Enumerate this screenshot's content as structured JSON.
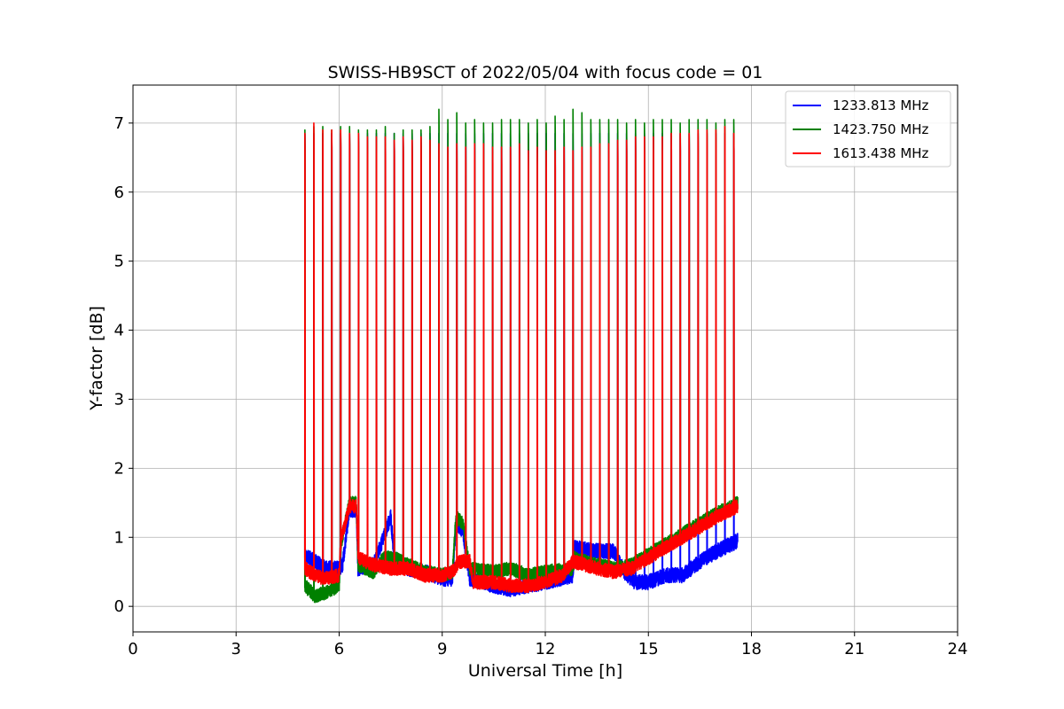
{
  "chart_data": {
    "type": "line",
    "title": "SWISS-HB9SCT of 2022/05/04 with focus code = 01",
    "xlabel": "Universal Time [h]",
    "ylabel": "Y-factor [dB]",
    "xlim": [
      0,
      24
    ],
    "ylim": [
      -0.37,
      7.55
    ],
    "xticks": [
      0,
      3,
      6,
      9,
      12,
      15,
      18,
      21,
      24
    ],
    "yticks": [
      0,
      1,
      2,
      3,
      4,
      5,
      6,
      7
    ],
    "grid": true,
    "legend_position": "top-right",
    "series": [
      {
        "name": "1233.813 MHz",
        "color": "#0000ff",
        "baseline": [
          [
            5.0,
            0.75
          ],
          [
            5.3,
            0.65
          ],
          [
            5.6,
            0.55
          ],
          [
            6.0,
            0.55
          ],
          [
            6.1,
            0.6
          ],
          [
            6.3,
            1.4
          ],
          [
            6.5,
            1.4
          ],
          [
            6.55,
            0.55
          ],
          [
            7.0,
            0.6
          ],
          [
            7.3,
            1.0
          ],
          [
            7.5,
            1.3
          ],
          [
            7.6,
            0.7
          ],
          [
            8.0,
            0.55
          ],
          [
            8.5,
            0.5
          ],
          [
            9.0,
            0.4
          ],
          [
            9.3,
            0.4
          ],
          [
            9.4,
            1.2
          ],
          [
            9.6,
            1.1
          ],
          [
            9.8,
            0.4
          ],
          [
            10.5,
            0.3
          ],
          [
            11.0,
            0.25
          ],
          [
            11.5,
            0.3
          ],
          [
            12.0,
            0.35
          ],
          [
            12.8,
            0.45
          ],
          [
            12.85,
            0.85
          ],
          [
            13.5,
            0.8
          ],
          [
            14.0,
            0.8
          ],
          [
            14.3,
            0.5
          ],
          [
            14.6,
            0.35
          ],
          [
            15.0,
            0.35
          ],
          [
            15.5,
            0.45
          ],
          [
            16.0,
            0.45
          ],
          [
            16.5,
            0.65
          ],
          [
            17.0,
            0.8
          ],
          [
            17.6,
            0.95
          ]
        ],
        "noise": 0.11,
        "spikes": [
          5.0,
          5.26,
          5.52,
          5.78,
          6.04,
          6.3,
          6.56,
          6.82,
          7.08,
          7.34,
          7.6,
          7.86,
          8.12,
          8.38,
          8.64,
          8.9,
          9.16,
          9.42,
          9.68,
          9.94,
          10.2,
          10.46,
          10.72,
          10.98,
          11.24,
          11.5,
          11.76,
          12.02,
          12.28,
          12.54,
          12.8,
          13.06,
          13.32,
          13.58,
          13.84,
          14.1,
          14.36,
          14.62,
          14.88,
          15.14,
          15.4,
          15.66,
          15.92,
          16.18,
          16.44,
          16.7,
          16.96,
          17.22,
          17.48
        ],
        "spike_peak": 6.85
      },
      {
        "name": "1423.750 MHz",
        "color": "#008000",
        "baseline": [
          [
            5.0,
            0.3
          ],
          [
            5.3,
            0.15
          ],
          [
            5.6,
            0.2
          ],
          [
            6.0,
            0.3
          ],
          [
            6.05,
            0.9
          ],
          [
            6.3,
            1.5
          ],
          [
            6.5,
            1.5
          ],
          [
            6.55,
            0.6
          ],
          [
            7.0,
            0.5
          ],
          [
            7.3,
            0.7
          ],
          [
            7.6,
            0.7
          ],
          [
            8.0,
            0.6
          ],
          [
            8.5,
            0.5
          ],
          [
            9.0,
            0.45
          ],
          [
            9.3,
            0.5
          ],
          [
            9.4,
            1.3
          ],
          [
            9.6,
            1.2
          ],
          [
            9.8,
            0.55
          ],
          [
            10.5,
            0.5
          ],
          [
            11.0,
            0.55
          ],
          [
            11.5,
            0.45
          ],
          [
            12.0,
            0.5
          ],
          [
            12.8,
            0.55
          ],
          [
            12.85,
            0.7
          ],
          [
            13.5,
            0.6
          ],
          [
            14.0,
            0.55
          ],
          [
            14.5,
            0.6
          ],
          [
            15.0,
            0.75
          ],
          [
            15.5,
            0.9
          ],
          [
            16.0,
            1.05
          ],
          [
            16.5,
            1.2
          ],
          [
            17.0,
            1.35
          ],
          [
            17.6,
            1.5
          ]
        ],
        "noise": 0.1,
        "spikes": [
          5.0,
          5.26,
          5.52,
          5.78,
          6.04,
          6.3,
          6.56,
          6.82,
          7.08,
          7.34,
          7.6,
          7.86,
          8.12,
          8.38,
          8.64,
          8.9,
          9.16,
          9.42,
          9.68,
          9.94,
          10.2,
          10.46,
          10.72,
          10.98,
          11.24,
          11.5,
          11.76,
          12.02,
          12.28,
          12.54,
          12.8,
          13.06,
          13.32,
          13.58,
          13.84,
          14.1,
          14.36,
          14.62,
          14.88,
          15.14,
          15.4,
          15.66,
          15.92,
          16.18,
          16.44,
          16.7,
          16.96,
          17.22,
          17.48
        ],
        "spike_peaks": [
          6.9,
          6.95,
          6.95,
          6.9,
          6.95,
          6.95,
          6.9,
          6.9,
          6.9,
          6.95,
          6.85,
          6.9,
          6.9,
          6.9,
          6.95,
          7.2,
          7.05,
          7.15,
          7.0,
          7.05,
          7.0,
          7.0,
          7.05,
          7.05,
          7.05,
          7.0,
          7.05,
          7.0,
          7.1,
          7.05,
          7.2,
          7.15,
          7.05,
          7.05,
          7.05,
          7.05,
          7.0,
          7.05,
          7.0,
          7.05,
          7.05,
          7.05,
          7.0,
          7.05,
          7.05,
          7.05,
          7.0,
          7.05,
          7.05
        ]
      },
      {
        "name": "1613.438 MHz",
        "color": "#ff0000",
        "baseline": [
          [
            5.0,
            0.55
          ],
          [
            5.3,
            0.45
          ],
          [
            5.6,
            0.4
          ],
          [
            6.0,
            0.45
          ],
          [
            6.05,
            0.95
          ],
          [
            6.3,
            1.45
          ],
          [
            6.5,
            1.45
          ],
          [
            6.55,
            0.7
          ],
          [
            7.0,
            0.6
          ],
          [
            7.5,
            0.55
          ],
          [
            8.0,
            0.55
          ],
          [
            8.5,
            0.45
          ],
          [
            9.0,
            0.45
          ],
          [
            9.3,
            0.5
          ],
          [
            9.5,
            0.65
          ],
          [
            9.8,
            0.65
          ],
          [
            9.9,
            0.35
          ],
          [
            10.5,
            0.35
          ],
          [
            11.0,
            0.3
          ],
          [
            11.5,
            0.3
          ],
          [
            12.0,
            0.35
          ],
          [
            12.5,
            0.45
          ],
          [
            12.8,
            0.65
          ],
          [
            13.5,
            0.55
          ],
          [
            14.0,
            0.5
          ],
          [
            14.5,
            0.55
          ],
          [
            15.0,
            0.7
          ],
          [
            15.5,
            0.85
          ],
          [
            16.0,
            1.0
          ],
          [
            16.5,
            1.15
          ],
          [
            17.0,
            1.3
          ],
          [
            17.6,
            1.45
          ]
        ],
        "noise": 0.1,
        "spikes": [
          5.0,
          5.26,
          5.52,
          5.78,
          6.04,
          6.3,
          6.56,
          6.82,
          7.08,
          7.34,
          7.6,
          7.86,
          8.12,
          8.38,
          8.64,
          8.9,
          9.16,
          9.42,
          9.68,
          9.94,
          10.2,
          10.46,
          10.72,
          10.98,
          11.24,
          11.5,
          11.76,
          12.02,
          12.28,
          12.54,
          12.8,
          13.06,
          13.32,
          13.58,
          13.84,
          14.1,
          14.36,
          14.62,
          14.88,
          15.14,
          15.4,
          15.66,
          15.92,
          16.18,
          16.44,
          16.7,
          16.96,
          17.22,
          17.48
        ],
        "spike_peaks": [
          6.85,
          7.0,
          6.9,
          6.9,
          6.9,
          6.85,
          6.85,
          6.8,
          6.8,
          6.8,
          6.75,
          6.8,
          6.75,
          6.8,
          6.75,
          6.7,
          6.65,
          6.7,
          6.65,
          6.7,
          6.7,
          6.65,
          6.65,
          6.65,
          6.7,
          6.6,
          6.65,
          6.6,
          6.6,
          6.65,
          6.6,
          6.65,
          6.65,
          6.7,
          6.7,
          6.75,
          6.75,
          6.8,
          6.8,
          6.8,
          6.8,
          6.85,
          6.85,
          6.85,
          6.9,
          6.9,
          6.9,
          6.95,
          6.85
        ]
      }
    ]
  }
}
